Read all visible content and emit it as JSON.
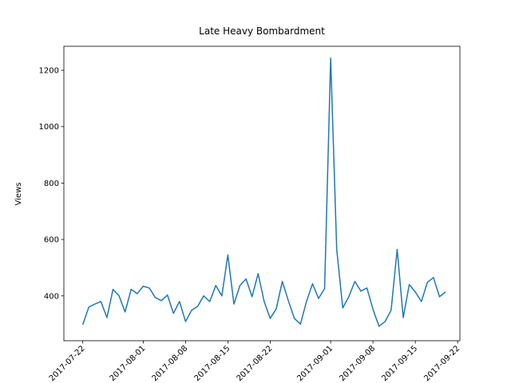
{
  "chart_data": {
    "type": "line",
    "title": "Late Heavy Bombardment",
    "y_label": "Views",
    "x": [
      "2017-07-22",
      "2017-07-23",
      "2017-07-24",
      "2017-07-25",
      "2017-07-26",
      "2017-07-27",
      "2017-07-28",
      "2017-07-29",
      "2017-07-30",
      "2017-07-31",
      "2017-08-01",
      "2017-08-02",
      "2017-08-03",
      "2017-08-04",
      "2017-08-05",
      "2017-08-06",
      "2017-08-07",
      "2017-08-08",
      "2017-08-09",
      "2017-08-10",
      "2017-08-11",
      "2017-08-12",
      "2017-08-13",
      "2017-08-14",
      "2017-08-15",
      "2017-08-16",
      "2017-08-17",
      "2017-08-18",
      "2017-08-19",
      "2017-08-20",
      "2017-08-21",
      "2017-08-22",
      "2017-08-23",
      "2017-08-24",
      "2017-08-25",
      "2017-08-26",
      "2017-08-27",
      "2017-08-28",
      "2017-08-29",
      "2017-08-30",
      "2017-08-31",
      "2017-09-01",
      "2017-09-02",
      "2017-09-03",
      "2017-09-04",
      "2017-09-05",
      "2017-09-06",
      "2017-09-07",
      "2017-09-08",
      "2017-09-09",
      "2017-09-10",
      "2017-09-11",
      "2017-09-12",
      "2017-09-13",
      "2017-09-14",
      "2017-09-15",
      "2017-09-16",
      "2017-09-17",
      "2017-09-18",
      "2017-09-19",
      "2017-09-20"
    ],
    "series": [
      {
        "name": "Views",
        "color": "#1f77b4",
        "values": [
          298,
          360,
          371,
          380,
          323,
          423,
          400,
          343,
          423,
          408,
          434,
          428,
          394,
          383,
          403,
          338,
          380,
          309,
          349,
          363,
          400,
          380,
          437,
          400,
          545,
          371,
          437,
          460,
          397,
          479,
          380,
          320,
          354,
          451,
          383,
          320,
          300,
          380,
          443,
          391,
          426,
          1243,
          565,
          357,
          397,
          451,
          417,
          428,
          352,
          292,
          309,
          349,
          565,
          323,
          440,
          414,
          380,
          448,
          465,
          397,
          414
        ]
      }
    ],
    "xlim": [
      "2017-07-18T21:00Z",
      "2017-09-22T09:00Z"
    ],
    "xticks": [
      "2017-07-22",
      "2017-08-01",
      "2017-08-08",
      "2017-08-15",
      "2017-08-22",
      "2017-09-01",
      "2017-09-08",
      "2017-09-15",
      "2017-09-22"
    ],
    "ylim": [
      241,
      1285
    ],
    "yticks": [
      400,
      600,
      800,
      1000,
      1200
    ],
    "grid": false
  }
}
